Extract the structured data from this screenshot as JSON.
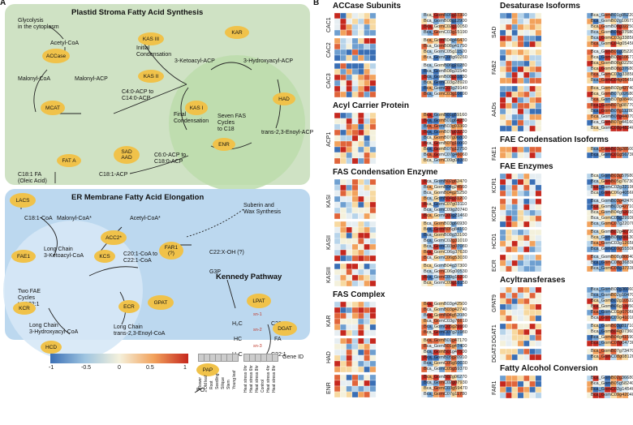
{
  "panel_a": {
    "letter": "A",
    "plastid_title": "Plastid Stroma Fatty Acid Synthesis",
    "er_title": "ER Membrane Fatty Acid Elongation",
    "kennedy_title": "Kennedy Pathway",
    "glycolysis": "Glycolysis\nin the cytoplasm",
    "metabolites": {
      "acetyl_coa": "Acetyl-CoA",
      "malonyl_coa": "Malonyl-CoA",
      "malonyl_acp": "Malonyl-ACP",
      "ketoacyl_acp": "3-Ketoacyl-ACP",
      "hydroxyacyl_acp": "3-Hydroxyacyl-ACP",
      "enoyl_acp": "trans-2,3-Enoyl-ACP",
      "c60_acp": "C6:0-ACP to\nC18:0-ACP",
      "c18_1_acp": "C18:1-ACP",
      "c18_1_fa": "C18:1 FA\n(Oleic Acid)",
      "c40_acp": "C4:0-ACP to\nC14:0-ACP",
      "initial_cond": "Initial\nCondensation",
      "final_cond": "Final\nCondensation",
      "seven_fas": "Seven FAS\nCycles\nto C18",
      "c18_1_coa": "C18:1-CoA",
      "malonyl_coa_er": "Malonyl-CoA*",
      "acetyl_coa_er": "Acetyl-CoA*",
      "suberin": "Suberin and\nWax Synthesis",
      "c22_oh": "C22:X-OH (?)",
      "long_keto": "Long Chain\n3-Ketoacyl-CoA",
      "long_hydroxy": "Long Chain\n3-Hydroxyacyl-CoA",
      "long_enoyl": "Long Chain\ntrans-2,3-Enoyl-CoA",
      "c20_coa": "C20:1-CoA to\nC22:1-CoA",
      "two_fae": "Two FAE\nCycles\nto C22:1",
      "g3p": "G3P",
      "po4": "PO₄",
      "sn1": "sn-1",
      "sn2": "sn-2",
      "sn3": "sn-3",
      "h2c1": "H₂C",
      "hc": "HC",
      "h2c2": "H₂C",
      "c22_1a": "C22:1",
      "fa": "FA",
      "c22_1b": "C22:1"
    },
    "enzymes": {
      "accase": "ACCase",
      "mcat": "MCAT",
      "kas3": "KAS III",
      "kas2": "KAS II",
      "kas1": "KAS I",
      "kar": "KAR",
      "had": "HAD",
      "enr": "ENR",
      "fata": "FAT A",
      "sad": "SAD\nAAD",
      "lacs": "LACS",
      "fae1": "FAE1",
      "acc2": "ACC2*",
      "kcs": "KCS",
      "kcr": "KCR",
      "ecr": "ECR",
      "hcd": "HCD",
      "far1": "FAR1\n(?)",
      "gpat": "GPAT",
      "lpat": "LPAT",
      "dgat": "DGAT",
      "pap": "PAP"
    },
    "legend": {
      "ticks": [
        "-1",
        "-0.5",
        "0",
        "0.5",
        "1"
      ],
      "tissues": [
        "Flower",
        "Old leaf",
        "Root",
        "Seedling",
        "Silique",
        "Stem",
        "Young leaf"
      ],
      "treatments": [
        "Heat stress 0hr",
        "Heat stress 6hr",
        "Heat stress 8hr",
        "Control",
        "Heat stress 4hr",
        "Heat stress 8hr"
      ],
      "gene_id": "Gene ID",
      "colors": {
        "low": "#3a6fb5",
        "mid": "#f4f1dc",
        "high": "#c6281e"
      }
    }
  },
  "panel_b": {
    "letter": "B",
    "columns": [
      {
        "sections": [
          {
            "title": "ACCase Subunits",
            "groups": [
              {
                "name": "CAC1",
                "genes": [
                  "Bca_GomB05g37390",
                  "Bca_GomB08g12900",
                  "Bca_GomC02g10050",
                  "Bca_GomC03g15190"
                ]
              },
              {
                "name": "CAC2",
                "genes": [
                  "Bca_GomB04g46430",
                  "Bca_GomB08g41750",
                  "Bca_GomC05g11520",
                  "Bca_GomC08g60260"
                ]
              },
              {
                "name": "CAC3",
                "genes": [
                  "Bca_GomB06g20280",
                  "Bca_GomB08g31540",
                  "Bca_GomB08g31830",
                  "Bca_GomC03g28920",
                  "Bca_GomC03g29140",
                  "Bca_GomC03g10690"
                ]
              }
            ]
          },
          {
            "title": "Acyl Carrier Protein",
            "groups": [
              {
                "name": "ACP1",
                "genes": [
                  "Bca_GomB01g59160",
                  "Bca_GomB01g64280",
                  "Bca_GomB03g93360",
                  "Bca_GomB07g03220",
                  "Bca_GomB07g06800",
                  "Bca_GomB07g10060",
                  "Bca_GomB07g12750",
                  "Bca_GomC07g46060",
                  "Bca_GomC09g08380"
                ]
              }
            ]
          },
          {
            "title": "FAS Condensation Enzyme",
            "groups": [
              {
                "name": "KASI",
                "genes": [
                  "Bca_GomB02g62470",
                  "Bca_GomB04g24560",
                  "Bca_GomB04g25250",
                  "Bca_GomB04g31200",
                  "Bca_GomC07g03110",
                  "Bca_GomC09g20740",
                  "Bca_GomC09g21460"
                ]
              },
              {
                "name": "KASII",
                "genes": [
                  "Bca_GomB03g66930",
                  "Bca_GomB05g84160",
                  "Bca_GomB08g33100",
                  "Bca_GomC02g31010",
                  "Bca_GomC03g07080",
                  "Bca_GomC06g37630",
                  "Bca_GomC06g53030"
                ]
              },
              {
                "name": "KASIII",
                "genes": [
                  "Bca_GomB04g37300",
                  "Bca_GomC06g00530",
                  "Bca_GomC09g16290",
                  "Bca_GomC09g18150"
                ]
              }
            ]
          },
          {
            "title": "FAS Complex",
            "groups": [
              {
                "name": "KAR",
                "genes": [
                  "Bca_GomB03g42500",
                  "Bca_GomB03g42740",
                  "Bca_GomB04g52080",
                  "Bca_GomC03g76610",
                  "Bca_GomC05g29990",
                  "Bca_GomC07g21980"
                ]
              },
              {
                "name": "HAD",
                "genes": [
                  "Bca_GomB01g47170",
                  "Bca_GomB01g47400",
                  "Bca_GomB01g47500",
                  "Bca_GomB05g20910",
                  "Bca_GomC05g50030",
                  "Bca_GomC05g59370"
                ]
              },
              {
                "name": "ENR",
                "genes": [
                  "Bca_GomB02g06270",
                  "Bca_GomC02g07930",
                  "Bca_GomC03g59470",
                  "Bca_GomC07g11780"
                ]
              }
            ]
          }
        ]
      },
      {
        "sections": [
          {
            "title": "Desaturase Isoforms",
            "groups": [
              {
                "name": "SAD",
                "genes": [
                  "Bca_GomB01g05220",
                  "Bca_GomB02g10671",
                  "Bca_GomB08g02250",
                  "Bca_GomB08g37680",
                  "Bca_GomC03g33850",
                  "Bca_GomC04g05450"
                ]
              },
              {
                "name": "FAB2",
                "genes": [
                  "Bca_GomB01g05220",
                  "Bca_GomB02g10671",
                  "Bca_GomB08g02250",
                  "Bca_GomB08g37680",
                  "Bca_GomC03g33850",
                  "Bca_GomC04g05450"
                ]
              },
              {
                "name": "AADs",
                "genes": [
                  "Bca_GomB02g42740",
                  "Bca_GomB07g02680",
                  "Bca_GomB07g08460",
                  "Bca_GomB07g08770",
                  "Bca_GomB07g11280",
                  "Bca_GomB07g44070",
                  "Bca_GomB07g44160",
                  "Bca_GomC08g48340"
                ]
              }
            ]
          },
          {
            "title": "FAE Condensation Isoforms",
            "groups": [
              {
                "name": "FAE1",
                "genes": [
                  "Bca_GomB03g28500",
                  "Bca_GomC01g56730"
                ]
              }
            ]
          },
          {
            "title": "FAE Enzymes",
            "groups": [
              {
                "name": "KCR1",
                "genes": [
                  "Bca_GomB03g57680",
                  "Bca_GomB05g76730",
                  "Bca_GomC02g22190",
                  "Bca_GomC06g40560"
                ]
              },
              {
                "name": "KCR2",
                "genes": [
                  "Bca_GomB03g42470",
                  "Bca_GomB03g42710",
                  "Bca_GomB04g52010",
                  "Bca_GomC05g29930",
                  "Bca_GomC07g22070"
                ]
              },
              {
                "name": "HCD1",
                "genes": [
                  "Bca_GomB02g46720",
                  "Bca_GomB08g08130",
                  "Bca_GomC03g12650",
                  "Bca_GomC09g55500"
                ]
              },
              {
                "name": "ECR",
                "genes": [
                  "Bca_GomB08g86040",
                  "Bca_GomC08g36830",
                  "Bca_GomC08g37330"
                ]
              }
            ]
          },
          {
            "title": "Acyltransferases",
            "groups": [
              {
                "name": "GPAT9",
                "genes": [
                  "Bca_GomB02g36060",
                  "Bca_GomB02g10470",
                  "Bca_GomB02g10522",
                  "Bca_GomB06g13950",
                  "Bca_GomC01g07060",
                  "Bca_GomC09g41010"
                ]
              },
              {
                "name": "DGAT1",
                "genes": [
                  "Bca_GomB03g81710",
                  "Bca_GomB04g07360",
                  "Bca_GomB04g41590",
                  "Bca_GomC07g04730"
                ]
              },
              {
                "name": "DGAT3",
                "genes": [
                  "Bca_GomB07g73470",
                  "Bca_GomC08g08120"
                ]
              }
            ]
          },
          {
            "title": "Fatty Alcohol Conversion",
            "groups": [
              {
                "name": "FAR1",
                "genes": [
                  "Bca_GomB02g36680",
                  "Bca_GomB05g58240",
                  "Bca_GomC02g14540",
                  "Bca_GomC09g42040"
                ]
              }
            ]
          }
        ]
      }
    ]
  }
}
